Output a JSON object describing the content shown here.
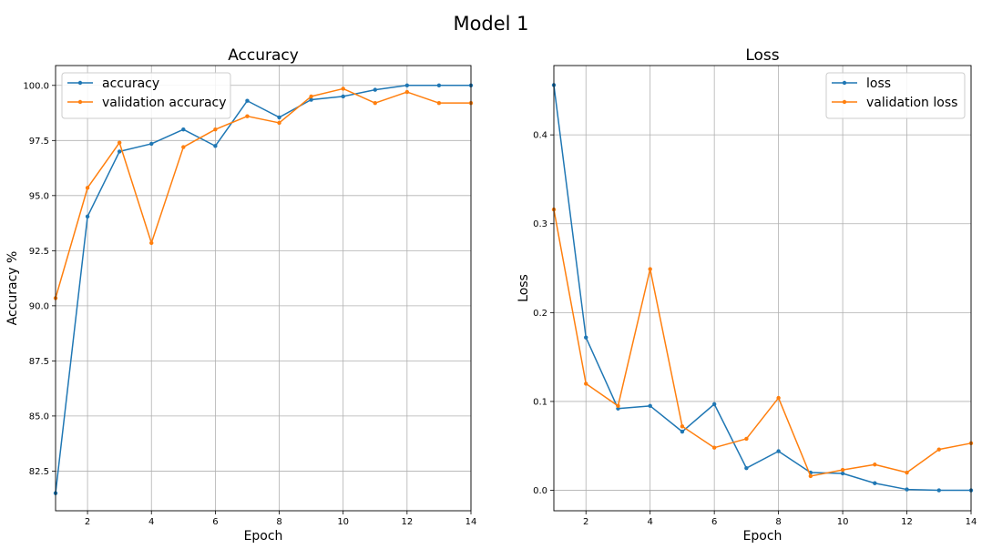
{
  "figure": {
    "title": "Model 1"
  },
  "colors": {
    "blue": "#1f77b4",
    "orange": "#ff7f0e",
    "grid": "#b0b0b0"
  },
  "chart_data": [
    {
      "type": "line",
      "title": "Accuracy",
      "xlabel": "Epoch",
      "ylabel": "Accuracy %",
      "xlim": [
        1,
        14
      ],
      "ylim": [
        80.7,
        100.9
      ],
      "xticks": [
        2,
        4,
        6,
        8,
        10,
        12,
        14
      ],
      "yticks": [
        82.5,
        85.0,
        87.5,
        90.0,
        92.5,
        95.0,
        97.5,
        100.0
      ],
      "grid": true,
      "legend": "upper-left",
      "x": [
        1,
        2,
        3,
        4,
        5,
        6,
        7,
        8,
        9,
        10,
        11,
        12,
        13,
        14
      ],
      "series": [
        {
          "name": "accuracy",
          "color": "#1f77b4",
          "values": [
            81.5,
            94.05,
            97.0,
            97.35,
            98.0,
            97.25,
            99.3,
            98.55,
            99.35,
            99.5,
            99.8,
            100.0,
            100.0,
            100.0
          ]
        },
        {
          "name": "validation accuracy",
          "color": "#ff7f0e",
          "values": [
            90.35,
            95.35,
            97.4,
            92.85,
            97.2,
            98.0,
            98.6,
            98.3,
            99.5,
            99.85,
            99.2,
            99.7,
            99.2,
            99.2
          ]
        }
      ]
    },
    {
      "type": "line",
      "title": "Loss",
      "xlabel": "Epoch",
      "ylabel": "Loss",
      "xlim": [
        1,
        14
      ],
      "ylim": [
        -0.023,
        0.478
      ],
      "xticks": [
        2,
        4,
        6,
        8,
        10,
        12,
        14
      ],
      "yticks": [
        0.0,
        0.1,
        0.2,
        0.3,
        0.4
      ],
      "grid": true,
      "legend": "upper-right",
      "x": [
        1,
        2,
        3,
        4,
        5,
        6,
        7,
        8,
        9,
        10,
        11,
        12,
        13,
        14
      ],
      "series": [
        {
          "name": "loss",
          "color": "#1f77b4",
          "values": [
            0.456,
            0.172,
            0.092,
            0.095,
            0.066,
            0.097,
            0.025,
            0.044,
            0.02,
            0.019,
            0.008,
            0.001,
            0.0,
            0.0
          ]
        },
        {
          "name": "validation loss",
          "color": "#ff7f0e",
          "values": [
            0.316,
            0.12,
            0.095,
            0.249,
            0.072,
            0.048,
            0.058,
            0.104,
            0.016,
            0.023,
            0.029,
            0.02,
            0.046,
            0.053
          ]
        }
      ]
    }
  ]
}
